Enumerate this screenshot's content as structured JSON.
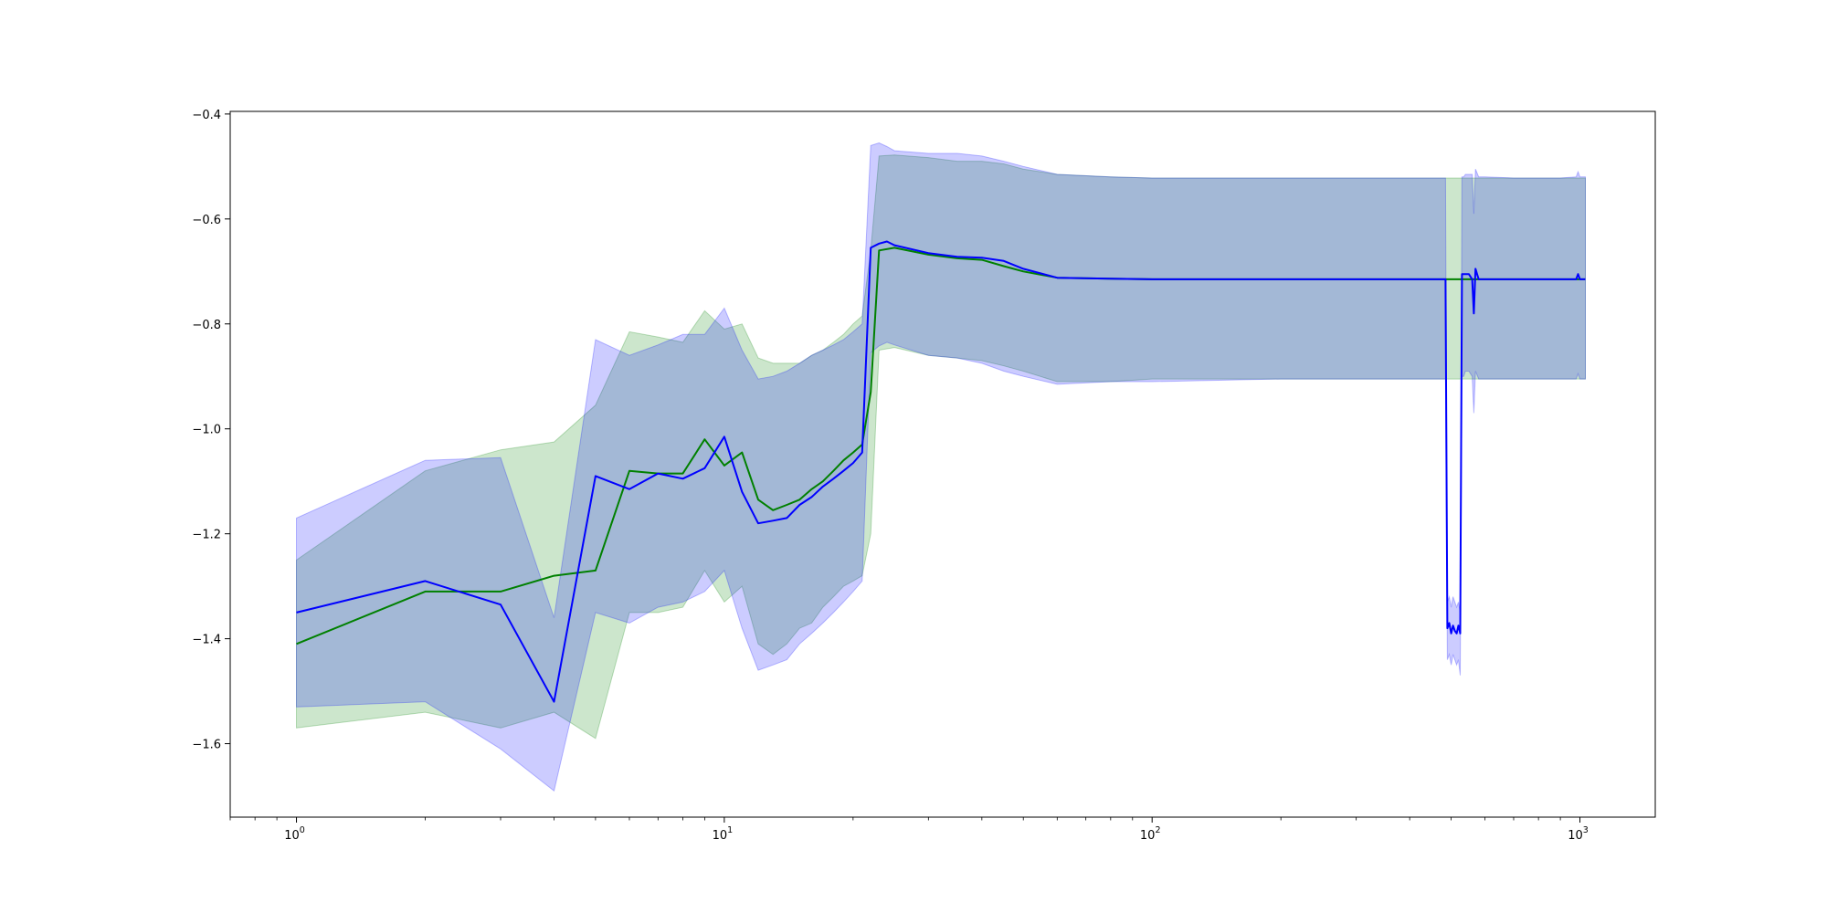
{
  "chart_data": {
    "type": "line",
    "title": "",
    "xlabel": "",
    "ylabel": "",
    "xscale": "log",
    "xlim": [
      0.7,
      1500
    ],
    "ylim": [
      -1.74,
      -0.395
    ],
    "grid": false,
    "legend": "none",
    "x_ticks": [
      {
        "base": "10",
        "exp": "0",
        "value": 1
      },
      {
        "base": "10",
        "exp": "1",
        "value": 10
      },
      {
        "base": "10",
        "exp": "2",
        "value": 100
      },
      {
        "base": "10",
        "exp": "3",
        "value": 1000
      }
    ],
    "y_ticks": [
      {
        "label": "−0.4",
        "value": -0.4
      },
      {
        "label": "−0.6",
        "value": -0.6
      },
      {
        "label": "−0.8",
        "value": -0.8
      },
      {
        "label": "−1.0",
        "value": -1.0
      },
      {
        "label": "−1.2",
        "value": -1.2
      },
      {
        "label": "−1.4",
        "value": -1.4
      },
      {
        "label": "−1.6",
        "value": -1.6
      }
    ],
    "series": [
      {
        "color": "#008000",
        "band_color": "#008000",
        "x": [
          1,
          2,
          3,
          4,
          5,
          6,
          7,
          8,
          9,
          10,
          11,
          12,
          13,
          14,
          15,
          16,
          17,
          18,
          19,
          20,
          21,
          22,
          23,
          25,
          30,
          35,
          40,
          45,
          50,
          60,
          80,
          100,
          200,
          300,
          490,
          520,
          550,
          560,
          580,
          600,
          700,
          800,
          900,
          1000,
          1030
        ],
        "y": [
          -1.41,
          -1.31,
          -1.31,
          -1.28,
          -1.27,
          -1.08,
          -1.085,
          -1.085,
          -1.02,
          -1.07,
          -1.045,
          -1.135,
          -1.155,
          -1.145,
          -1.135,
          -1.115,
          -1.1,
          -1.08,
          -1.06,
          -1.045,
          -1.03,
          -0.93,
          -0.66,
          -0.655,
          -0.668,
          -0.675,
          -0.678,
          -0.69,
          -0.7,
          -0.712,
          -0.714,
          -0.715,
          -0.715,
          -0.715,
          -0.715,
          -0.715,
          -0.715,
          -0.715,
          -0.715,
          -0.715,
          -0.715,
          -0.715,
          -0.715,
          -0.715,
          -0.715
        ],
        "lower": [
          -1.57,
          -1.54,
          -1.57,
          -1.54,
          -1.59,
          -1.35,
          -1.35,
          -1.34,
          -1.27,
          -1.33,
          -1.3,
          -1.41,
          -1.43,
          -1.41,
          -1.38,
          -1.37,
          -1.34,
          -1.32,
          -1.3,
          -1.29,
          -1.28,
          -1.2,
          -0.85,
          -0.845,
          -0.86,
          -0.865,
          -0.87,
          -0.88,
          -0.89,
          -0.91,
          -0.91,
          -0.905,
          -0.905,
          -0.905,
          -0.905,
          -0.905,
          -0.905,
          -0.905,
          -0.905,
          -0.905,
          -0.905,
          -0.905,
          -0.905,
          -0.905,
          -0.905
        ],
        "upper": [
          -1.25,
          -1.08,
          -1.04,
          -1.025,
          -0.955,
          -0.815,
          -0.825,
          -0.835,
          -0.775,
          -0.81,
          -0.8,
          -0.865,
          -0.875,
          -0.875,
          -0.875,
          -0.86,
          -0.85,
          -0.835,
          -0.82,
          -0.8,
          -0.785,
          -0.66,
          -0.48,
          -0.478,
          -0.483,
          -0.49,
          -0.49,
          -0.495,
          -0.505,
          -0.515,
          -0.52,
          -0.522,
          -0.522,
          -0.522,
          -0.522,
          -0.522,
          -0.522,
          -0.522,
          -0.522,
          -0.522,
          -0.522,
          -0.522,
          -0.522,
          -0.522,
          -0.522
        ]
      },
      {
        "color": "#0000ff",
        "band_color": "#0000ff",
        "x": [
          1,
          2,
          3,
          4,
          5,
          6,
          7,
          8,
          9,
          10,
          11,
          12,
          13,
          14,
          15,
          16,
          17,
          18,
          19,
          20,
          21,
          22,
          23,
          24,
          25,
          30,
          35,
          40,
          45,
          50,
          60,
          80,
          100,
          200,
          300,
          400,
          485,
          490,
          495,
          500,
          505,
          510,
          515,
          520,
          525,
          530,
          535,
          540,
          550,
          560,
          565,
          570,
          580,
          600,
          700,
          800,
          900,
          980,
          990,
          1000,
          1030
        ],
        "y": [
          -1.35,
          -1.29,
          -1.335,
          -1.52,
          -1.09,
          -1.115,
          -1.085,
          -1.095,
          -1.075,
          -1.015,
          -1.12,
          -1.18,
          -1.175,
          -1.17,
          -1.145,
          -1.13,
          -1.11,
          -1.095,
          -1.08,
          -1.065,
          -1.045,
          -0.655,
          -0.647,
          -0.643,
          -0.65,
          -0.665,
          -0.672,
          -0.674,
          -0.68,
          -0.695,
          -0.712,
          -0.714,
          -0.715,
          -0.715,
          -0.715,
          -0.715,
          -0.715,
          -1.38,
          -1.37,
          -1.39,
          -1.375,
          -1.385,
          -1.39,
          -1.375,
          -1.39,
          -0.705,
          -0.705,
          -0.705,
          -0.705,
          -0.715,
          -0.78,
          -0.695,
          -0.715,
          -0.715,
          -0.715,
          -0.715,
          -0.715,
          -0.715,
          -0.705,
          -0.715,
          -0.715
        ],
        "lower": [
          -1.53,
          -1.52,
          -1.61,
          -1.69,
          -1.35,
          -1.37,
          -1.34,
          -1.33,
          -1.31,
          -1.27,
          -1.38,
          -1.46,
          -1.45,
          -1.44,
          -1.41,
          -1.39,
          -1.37,
          -1.35,
          -1.33,
          -1.31,
          -1.29,
          -0.855,
          -0.842,
          -0.835,
          -0.84,
          -0.86,
          -0.865,
          -0.875,
          -0.89,
          -0.9,
          -0.915,
          -0.91,
          -0.91,
          -0.905,
          -0.905,
          -0.905,
          -0.905,
          -1.44,
          -1.43,
          -1.45,
          -1.43,
          -1.44,
          -1.45,
          -1.44,
          -1.47,
          -0.9,
          -0.9,
          -0.89,
          -0.89,
          -0.9,
          -0.97,
          -0.89,
          -0.905,
          -0.905,
          -0.905,
          -0.905,
          -0.905,
          -0.905,
          -0.895,
          -0.905,
          -0.905
        ],
        "upper": [
          -1.17,
          -1.06,
          -1.055,
          -1.36,
          -0.83,
          -0.86,
          -0.84,
          -0.82,
          -0.82,
          -0.77,
          -0.85,
          -0.905,
          -0.9,
          -0.89,
          -0.875,
          -0.86,
          -0.85,
          -0.84,
          -0.83,
          -0.815,
          -0.8,
          -0.46,
          -0.455,
          -0.462,
          -0.47,
          -0.475,
          -0.475,
          -0.48,
          -0.49,
          -0.5,
          -0.515,
          -0.52,
          -0.522,
          -0.522,
          -0.522,
          -0.522,
          -0.522,
          -1.33,
          -1.32,
          -1.34,
          -1.32,
          -1.33,
          -1.34,
          -1.33,
          -1.35,
          -0.52,
          -0.52,
          -0.515,
          -0.515,
          -0.515,
          -0.59,
          -0.505,
          -0.52,
          -0.52,
          -0.522,
          -0.522,
          -0.522,
          -0.52,
          -0.51,
          -0.52,
          -0.52
        ]
      }
    ]
  }
}
